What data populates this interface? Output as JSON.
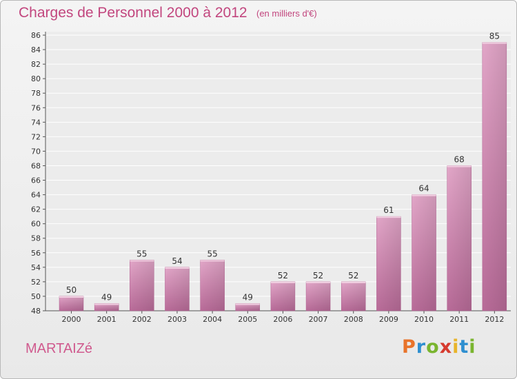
{
  "chart_data": {
    "type": "bar",
    "title": "Charges de Personnel 2000 à 2012",
    "subtitle": "(en milliers d'€)",
    "categories": [
      "2000",
      "2001",
      "2002",
      "2003",
      "2004",
      "2005",
      "2006",
      "2007",
      "2008",
      "2009",
      "2010",
      "2011",
      "2012"
    ],
    "values": [
      50,
      49,
      55,
      54,
      55,
      49,
      52,
      52,
      52,
      61,
      64,
      68,
      85
    ],
    "xlabel": "",
    "ylabel": "",
    "ylim": [
      48,
      86
    ],
    "yticks": [
      48,
      50,
      52,
      54,
      56,
      58,
      60,
      62,
      64,
      66,
      68,
      70,
      72,
      74,
      76,
      78,
      80,
      82,
      84,
      86
    ],
    "grid": true,
    "bar_color": "#cc6fa0"
  },
  "footer": {
    "place": "MARTAIZé",
    "logo": {
      "letters": [
        "P",
        "r",
        "o",
        "x",
        "i",
        "t",
        "i"
      ],
      "colors": [
        "#e8732a",
        "#2f8fd0",
        "#7ab52f",
        "#d63b2f",
        "#e8b42a",
        "#2f8fd0",
        "#7ab52f"
      ]
    }
  }
}
